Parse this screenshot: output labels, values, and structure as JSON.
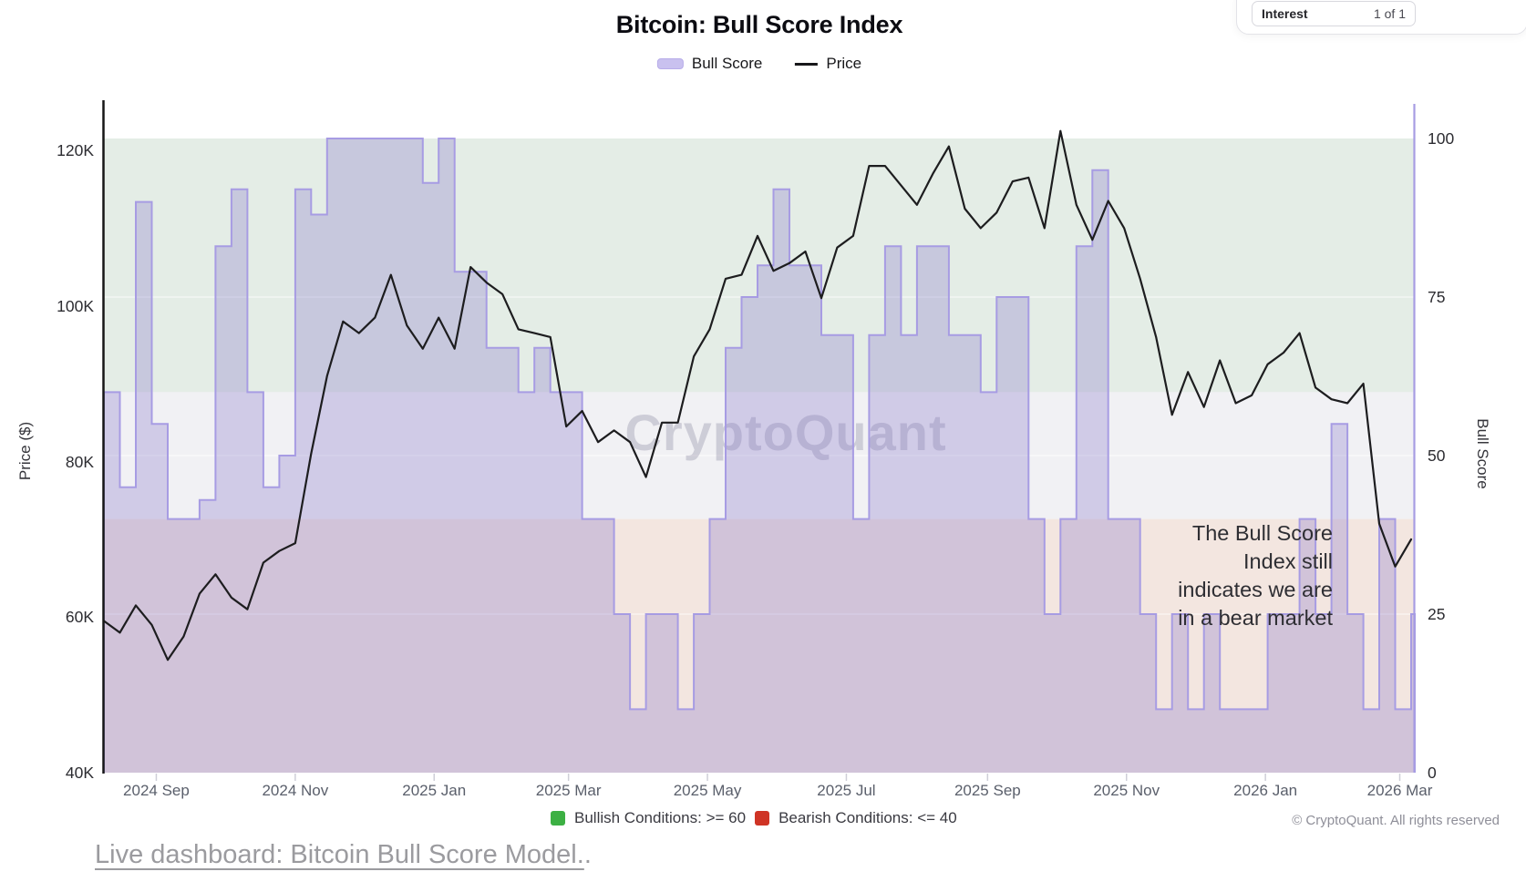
{
  "title": "Bitcoin: Bull Score Index",
  "legend": {
    "bull_score_label": "Bull Score",
    "price_label": "Price"
  },
  "top_widget": {
    "field_label": "Interest",
    "pager": "1 of 1"
  },
  "watermark": "CryptoQuant",
  "annotation": {
    "lines": [
      "The Bull Score",
      "Index still",
      "indicates we are",
      "in a bear market"
    ]
  },
  "footer": {
    "bullish_legend": "Bullish Conditions: >= 60",
    "bearish_legend": "Bearish Conditions: <= 40",
    "copyright": "© CryptoQuant. All rights reserved",
    "link_text": "Live dashboard: Bitcoin Bull Score Model.",
    "link_suffix": "."
  },
  "chart_data": {
    "type": "mixed",
    "start_date": "2024-08-09",
    "interval": "weekly",
    "x_ticks": [
      "2024 Sep",
      "2024 Nov",
      "2025 Jan",
      "2025 Mar",
      "2025 May",
      "2025 Jul",
      "2025 Sep",
      "2025 Nov",
      "2026 Jan",
      "2026 Mar"
    ],
    "left_axis": {
      "label": "Price ($)",
      "ticks": [
        "120K",
        "100K",
        "80K",
        "60K",
        "40K"
      ],
      "range_thousands": [
        40,
        126
      ],
      "unit": "USD"
    },
    "right_axis": {
      "label": "Bull Score",
      "ticks": [
        "100",
        "75",
        "50",
        "25",
        "0"
      ],
      "range": [
        0,
        106
      ]
    },
    "bands": [
      {
        "name": "bullish",
        "score_range": [
          60,
          100
        ],
        "color": "#e4ede6"
      },
      {
        "name": "neutral",
        "score_range": [
          40,
          60
        ],
        "color": "#f1f1f4"
      },
      {
        "name": "bearish",
        "score_range": [
          0,
          40
        ],
        "color": "#f3e6e0"
      }
    ],
    "thresholds": {
      "bullish_min": 60,
      "bearish_max": 40
    },
    "series": [
      {
        "name": "Bull Score",
        "type": "step-area",
        "axis": "right",
        "line_color": "#a79ce3",
        "fill_color": "rgba(131,116,201,0.30)",
        "weekly_values": [
          60,
          45,
          90,
          55,
          40,
          40,
          43,
          83,
          92,
          60,
          45,
          50,
          92,
          88,
          100,
          100,
          100,
          100,
          100,
          100,
          93,
          100,
          79,
          79,
          67,
          67,
          60,
          67,
          60,
          60,
          40,
          40,
          25,
          10,
          25,
          25,
          10,
          25,
          40,
          67,
          75,
          80,
          92,
          80,
          80,
          69,
          69,
          40,
          69,
          83,
          69,
          83,
          83,
          69,
          69,
          60,
          75,
          75,
          40,
          25,
          40,
          83,
          95,
          40,
          40,
          25,
          10,
          25,
          10,
          25,
          10,
          10,
          10,
          25,
          25,
          40,
          25,
          55,
          25,
          10,
          40,
          10,
          25
        ]
      },
      {
        "name": "Price",
        "type": "line",
        "axis": "left",
        "line_color": "#1d1d1f",
        "unit": "USD thousands",
        "weekly_values": [
          59.5,
          58,
          61.5,
          59,
          54.5,
          57.5,
          63,
          65.5,
          62.5,
          61,
          67,
          68.5,
          69.5,
          81,
          91,
          98,
          96.5,
          98.5,
          104,
          97.5,
          94.5,
          98.5,
          94.5,
          105,
          103,
          101.5,
          97,
          96.5,
          96,
          84.5,
          86.5,
          82.5,
          84,
          82.5,
          78,
          85,
          85,
          93.5,
          97,
          103.5,
          104,
          109,
          104.5,
          105.5,
          107,
          101,
          107.5,
          109,
          118,
          118,
          115.5,
          113,
          117,
          120.5,
          112.5,
          110,
          112,
          116,
          116.5,
          110,
          122.5,
          113,
          108.5,
          113.5,
          110,
          103.5,
          96,
          86,
          91.5,
          87,
          93,
          87.5,
          88.5,
          92.5,
          94,
          96.5,
          89.5,
          88,
          87.5,
          90,
          72,
          66.5,
          70
        ]
      }
    ]
  }
}
